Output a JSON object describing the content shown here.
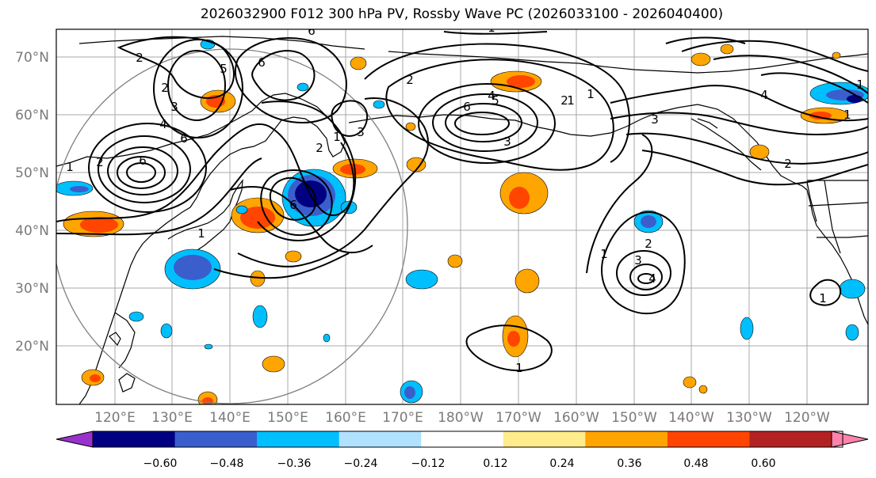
{
  "title": "2026032900 F012 300 hPa PV, Rossby Wave PC (2026033100 - 2026040400)",
  "lat_labels": [
    "70°N",
    "60°N",
    "50°N",
    "40°N",
    "30°N",
    "20°N"
  ],
  "lon_labels": [
    "120°E",
    "130°E",
    "140°E",
    "150°E",
    "160°E",
    "170°E",
    "180°W",
    "170°W",
    "160°W",
    "150°W",
    "140°W",
    "130°W",
    "120°W"
  ],
  "colorbar": {
    "ticks": [
      "−0.60",
      "−0.48",
      "−0.36",
      "−0.24",
      "−0.12",
      "0.12",
      "0.24",
      "0.36",
      "0.48",
      "0.60"
    ],
    "colors": [
      "#9932cc",
      "#000080",
      "#3a5fcd",
      "#00bfff",
      "#b0e2ff",
      "#ffffff",
      "#ffec8b",
      "#ffa500",
      "#ff4500",
      "#b22222",
      "#ff82ab"
    ]
  },
  "contour_labels": [
    "6",
    "1",
    "2",
    "6",
    "5",
    "2",
    "3",
    "4",
    "6",
    "2",
    "6",
    "1",
    "1",
    "2",
    "5",
    "2",
    "3",
    "4",
    "6",
    "3",
    "2",
    "1",
    "6",
    "1",
    "4",
    "2",
    "3",
    "1",
    "1",
    "1",
    "2",
    "3",
    "4",
    "1",
    "1",
    "1"
  ]
}
